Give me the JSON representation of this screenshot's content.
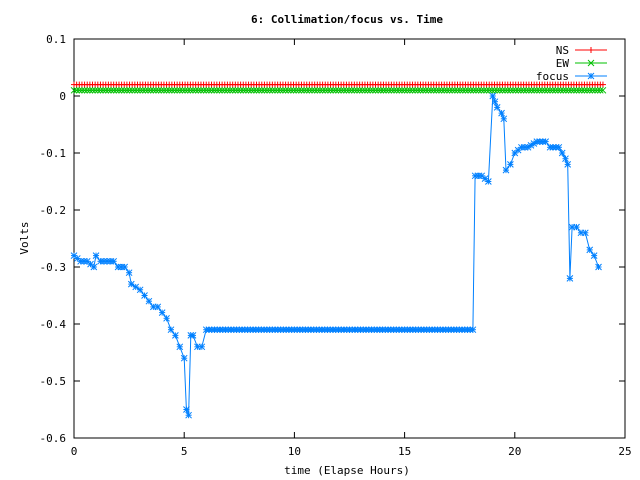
{
  "chart_data": {
    "type": "line",
    "title": "6: Collimation/focus vs. Time",
    "xlabel": "time (Elapse Hours)",
    "ylabel": "Volts",
    "xlim": [
      0,
      25
    ],
    "ylim": [
      -0.6,
      0.1
    ],
    "xticks": [
      0,
      5,
      10,
      15,
      20,
      25
    ],
    "yticks": [
      0.1,
      0,
      -0.1,
      -0.2,
      -0.3,
      -0.4,
      -0.5,
      -0.6
    ],
    "xtick_labels": [
      "0",
      "5",
      "10",
      "15",
      "20",
      "25"
    ],
    "ytick_labels": [
      "0.1",
      "0",
      "-0.1",
      "-0.2",
      "-0.3",
      "-0.4",
      "-0.5",
      "-0.6"
    ],
    "grid": false,
    "legend_position": "top-right",
    "series": [
      {
        "name": "NS",
        "color": "#ff0000",
        "marker": "plus",
        "x": [
          0,
          24
        ],
        "y": [
          0.02,
          0.02
        ]
      },
      {
        "name": "EW",
        "color": "#00c000",
        "marker": "cross",
        "x": [
          0,
          24
        ],
        "y": [
          0.01,
          0.01
        ]
      },
      {
        "name": "focus",
        "color": "#0080ff",
        "marker": "star",
        "x": [
          0,
          0.3,
          0.6,
          0.9,
          1.0,
          1.2,
          1.5,
          1.8,
          2.0,
          2.3,
          2.5,
          2.6,
          2.8,
          3.0,
          3.2,
          3.4,
          3.6,
          3.8,
          4.0,
          4.2,
          4.4,
          4.6,
          4.8,
          5.0,
          5.1,
          5.2,
          5.3,
          5.4,
          5.6,
          5.8,
          6.0,
          8,
          10,
          12,
          14,
          16,
          18.1,
          18.2,
          18.5,
          18.8,
          19.0,
          19.1,
          19.2,
          19.4,
          19.5,
          19.6,
          19.8,
          20.0,
          20.3,
          20.6,
          21.0,
          21.4,
          21.6,
          22.0,
          22.3,
          22.4,
          22.5,
          22.6,
          22.8,
          23.0,
          23.2,
          23.4,
          23.6,
          23.8
        ],
        "y": [
          -0.28,
          -0.29,
          -0.29,
          -0.3,
          -0.28,
          -0.29,
          -0.29,
          -0.29,
          -0.3,
          -0.3,
          -0.31,
          -0.33,
          -0.335,
          -0.34,
          -0.35,
          -0.36,
          -0.37,
          -0.37,
          -0.38,
          -0.39,
          -0.41,
          -0.42,
          -0.44,
          -0.46,
          -0.55,
          -0.56,
          -0.42,
          -0.42,
          -0.44,
          -0.44,
          -0.41,
          -0.41,
          -0.41,
          -0.41,
          -0.41,
          -0.41,
          -0.41,
          -0.14,
          -0.14,
          -0.15,
          0.0,
          -0.01,
          -0.02,
          -0.03,
          -0.04,
          -0.13,
          -0.12,
          -0.1,
          -0.09,
          -0.09,
          -0.08,
          -0.08,
          -0.09,
          -0.09,
          -0.11,
          -0.12,
          -0.32,
          -0.23,
          -0.23,
          -0.24,
          -0.24,
          -0.27,
          -0.28,
          -0.3
        ]
      }
    ]
  }
}
